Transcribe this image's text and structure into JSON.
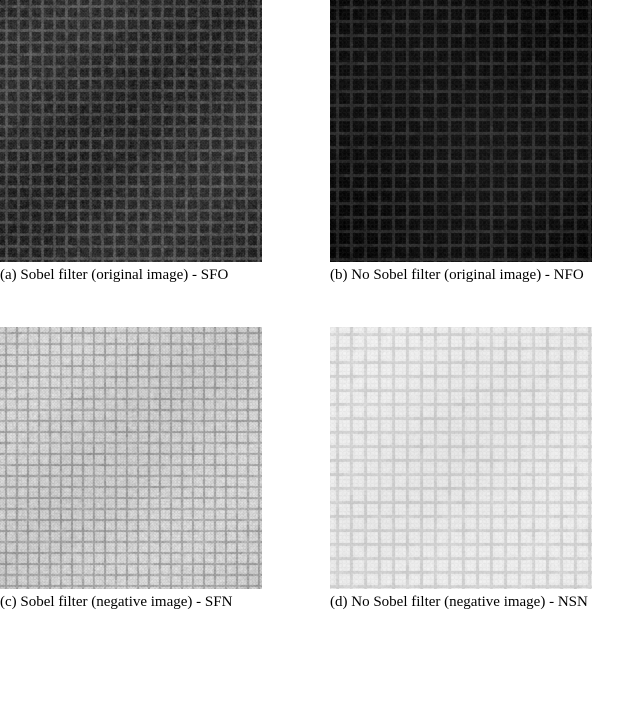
{
  "figure": {
    "rows": [
      {
        "cells": [
          {
            "id": "sfo",
            "caption": "(a) Sobel filter (original image) - SFO",
            "texture": {
              "base_gray": 60,
              "noise_amp": 55,
              "grid_lighten": 45,
              "grid_spacing_coarse": 12,
              "grid_spacing_fine": 3,
              "invert": false
            }
          },
          {
            "id": "nfo",
            "caption": "(b) No Sobel filter (original image) - NFO",
            "texture": {
              "base_gray": 35,
              "noise_amp": 25,
              "grid_lighten": 35,
              "grid_spacing_coarse": 14,
              "grid_spacing_fine": 4,
              "invert": false,
              "vignette": true
            }
          }
        ]
      },
      {
        "cells": [
          {
            "id": "sfn",
            "caption": "(c) Sobel filter (negative image) - SFN",
            "texture": {
              "base_gray": 230,
              "noise_amp": 45,
              "grid_lighten": -55,
              "grid_spacing_coarse": 11,
              "grid_spacing_fine": 3,
              "invert": true
            }
          },
          {
            "id": "nsn",
            "caption": "(d) No Sobel filter (negative image) - NSN",
            "texture": {
              "base_gray": 238,
              "noise_amp": 18,
              "grid_lighten": -30,
              "grid_spacing_coarse": 14,
              "grid_spacing_fine": 4,
              "invert": true,
              "vignette": true
            }
          }
        ]
      }
    ]
  },
  "style": {
    "image_size": 262,
    "caption_fontsize": 15,
    "caption_color": "#000000",
    "background": "#ffffff"
  }
}
